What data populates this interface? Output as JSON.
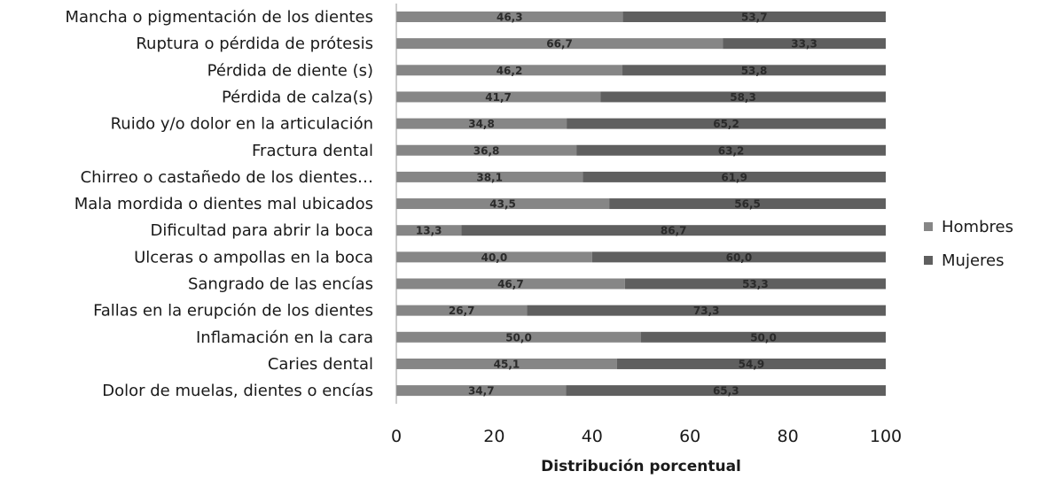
{
  "chart_data": {
    "type": "bar",
    "orientation": "horizontal",
    "stacked": "percent",
    "categories": [
      "Mancha o pigmentación de los dientes",
      "Ruptura o pérdida de prótesis",
      "Pérdida de diente (s)",
      "Pérdida de calza(s)",
      "Ruido y/o dolor en la articulación",
      "Fractura dental",
      "Chirreo o castañedo de los dientes…",
      "Mala mordida o dientes mal ubicados",
      "Dificultad para abrir la boca",
      "Ulceras o ampollas en la boca",
      "Sangrado de las encías",
      "Fallas en la erupción de los dientes",
      "Inflamación en la cara",
      "Caries dental",
      "Dolor de muelas, dientes o encías"
    ],
    "series": [
      {
        "name": "Hombres",
        "color": "#868686",
        "values": [
          46.3,
          66.7,
          46.2,
          41.7,
          34.8,
          36.8,
          38.1,
          43.5,
          13.3,
          40.0,
          46.7,
          26.7,
          50.0,
          45.1,
          34.7
        ],
        "labels": [
          "46,3",
          "66,7",
          "46,2",
          "41,7",
          "34,8",
          "36,8",
          "38,1",
          "43,5",
          "13,3",
          "40,0",
          "46,7",
          "26,7",
          "50,0",
          "45,1",
          "34,7"
        ]
      },
      {
        "name": "Mujeres",
        "color": "#5f5f5f",
        "values": [
          53.7,
          33.3,
          53.8,
          58.3,
          65.2,
          63.2,
          61.9,
          56.5,
          86.7,
          60.0,
          53.3,
          73.3,
          50.0,
          54.9,
          65.3
        ],
        "labels": [
          "53,7",
          "33,3",
          "53,8",
          "58,3",
          "65,2",
          "63,2",
          "61,9",
          "56,5",
          "86,7",
          "60,0",
          "53,3",
          "73,3",
          "50,0",
          "54,9",
          "65,3"
        ]
      }
    ],
    "xlabel": "Distribución porcentual",
    "ylabel": "",
    "xlim": [
      0,
      100
    ],
    "xticks": [
      "0",
      "20",
      "40",
      "60",
      "80",
      "100"
    ],
    "grid": false,
    "legend_position": "right"
  }
}
